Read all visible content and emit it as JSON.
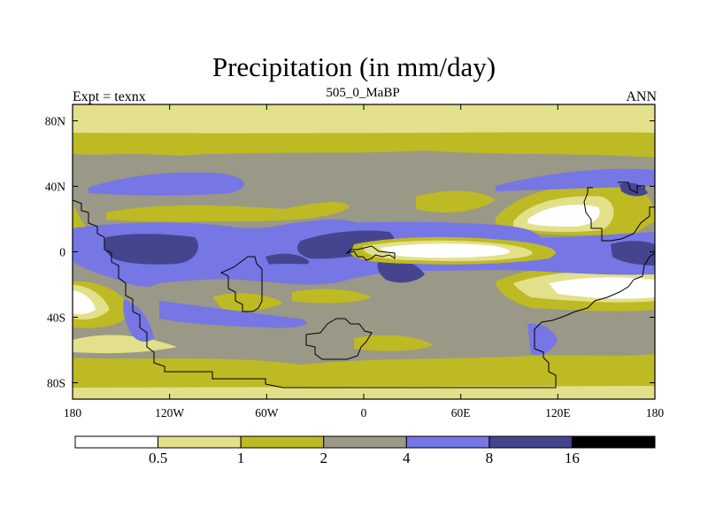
{
  "header": {
    "title": "Precipitation (in mm/day)",
    "left_label": "Expt = texnx",
    "center_label": "505_0_MaBP",
    "right_label": "ANN"
  },
  "map": {
    "lon_range": [
      -180,
      180
    ],
    "lat_range": [
      -90,
      90
    ],
    "x_ticks": [
      {
        "value": -180,
        "label": "180"
      },
      {
        "value": -120,
        "label": "120W"
      },
      {
        "value": -60,
        "label": "60W"
      },
      {
        "value": 0,
        "label": "0"
      },
      {
        "value": 60,
        "label": "60E"
      },
      {
        "value": 120,
        "label": "120E"
      },
      {
        "value": 180,
        "label": "180"
      }
    ],
    "y_ticks": [
      {
        "value": 80,
        "label": "80N"
      },
      {
        "value": 40,
        "label": "40N"
      },
      {
        "value": 0,
        "label": "0"
      },
      {
        "value": -40,
        "label": "40S"
      },
      {
        "value": -80,
        "label": "80S"
      }
    ]
  },
  "colorbar": {
    "colors": [
      "#ffffff",
      "#e2e08a",
      "#bdba24",
      "#9a9886",
      "#7676e4",
      "#45458f",
      "#000000"
    ],
    "labels": [
      "0.5",
      "1",
      "2",
      "4",
      "8",
      "16"
    ]
  }
}
